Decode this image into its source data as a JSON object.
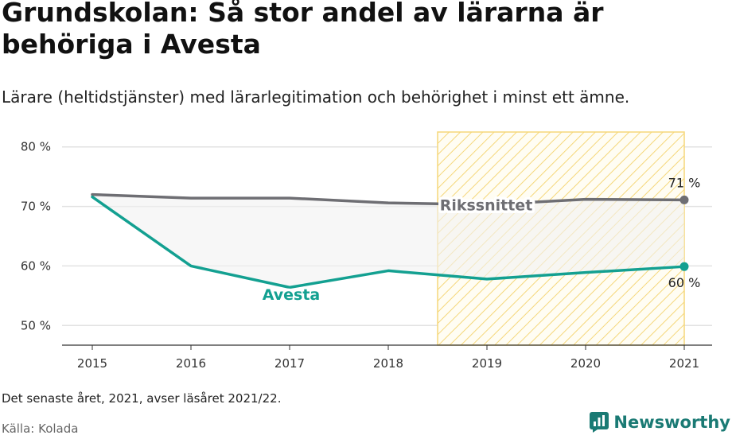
{
  "header": {
    "title": "Grundskolan: Så stor andel av lärarna är behöriga i Avesta",
    "subtitle": "Lärare (heltidstjänster) med lärarlegitimation och behörighet i minst ett ämne."
  },
  "footer": {
    "note": "Det senaste året, 2021, avser läsåret 2021/22.",
    "source": "Källa: Kolada",
    "brand": "Newsworthy"
  },
  "icons": {
    "brand_logo": "newsworthy-logo-icon"
  },
  "colors": {
    "avesta": "#13a091",
    "riks": "#6e6e73",
    "highlight": "#f5d77a",
    "fill": "#f2f2f2",
    "brand": "#1a7a74"
  },
  "chart_data": {
    "type": "line",
    "x": [
      2015,
      2016,
      2017,
      2018,
      2019,
      2020,
      2021
    ],
    "series": [
      {
        "name": "Rikssnittet",
        "values": [
          72.0,
          71.4,
          71.4,
          70.6,
          70.3,
          71.2,
          71.1
        ]
      },
      {
        "name": "Avesta",
        "values": [
          71.6,
          60.0,
          56.4,
          59.2,
          57.8,
          58.9,
          59.9
        ]
      }
    ],
    "end_labels": {
      "Rikssnittet": "71 %",
      "Avesta": "60 %"
    },
    "yticks": [
      "50 %",
      "60 %",
      "70 %",
      "80 %"
    ],
    "ytick_values": [
      50,
      60,
      70,
      80
    ],
    "xticks": [
      "2015",
      "2016",
      "2017",
      "2018",
      "2019",
      "2020",
      "2021"
    ],
    "ylim": [
      46.7,
      82.5
    ],
    "highlight_range": [
      2018.5,
      2021
    ],
    "grid": true,
    "legend": "inline"
  }
}
